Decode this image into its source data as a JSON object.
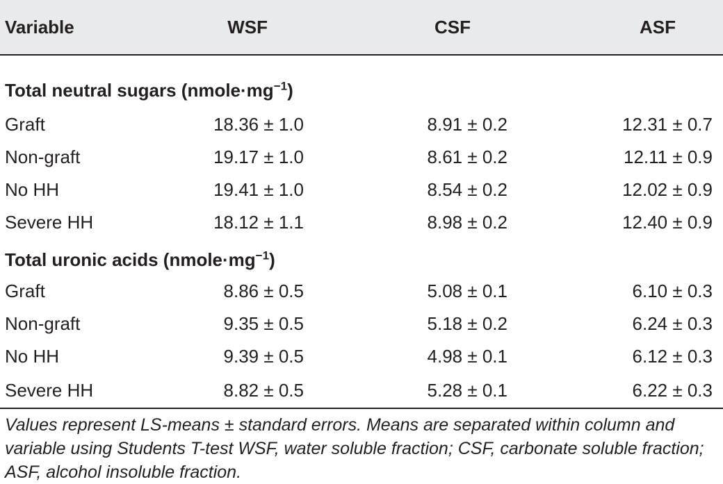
{
  "table": {
    "headers": [
      "Variable",
      "WSF",
      "CSF",
      "ASF"
    ],
    "groups": [
      {
        "title": "Total neutral sugars (nmole·mg",
        "title_sup": "−1",
        "title_end": ")",
        "rows": [
          {
            "label": "Graft",
            "wsf": "18.36 ± 1.0",
            "csf": "8.91 ± 0.2",
            "asf": "12.31 ± 0.7"
          },
          {
            "label": "Non-graft",
            "wsf": "19.17 ± 1.0",
            "csf": "8.61 ± 0.2",
            "asf": "12.11 ± 0.9"
          },
          {
            "label": "No HH",
            "wsf": "19.41 ± 1.0",
            "csf": "8.54 ± 0.2",
            "asf": "12.02 ± 0.9"
          },
          {
            "label": "Severe HH",
            "wsf": "18.12 ± 1.1",
            "csf": "8.98 ± 0.2",
            "asf": "12.40 ± 0.9"
          }
        ]
      },
      {
        "title": "Total uronic acids (nmole·mg",
        "title_sup": "−1",
        "title_end": ")",
        "rows": [
          {
            "label": "Graft",
            "wsf": "8.86 ± 0.5",
            "csf": "5.08 ± 0.1",
            "asf": "6.10 ± 0.3"
          },
          {
            "label": "Non-graft",
            "wsf": "9.35 ± 0.5",
            "csf": "5.18 ± 0.2",
            "asf": "6.24 ± 0.3"
          },
          {
            "label": "No HH",
            "wsf": "9.39 ± 0.5",
            "csf": "4.98 ± 0.1",
            "asf": "6.12 ± 0.3"
          },
          {
            "label": "Severe HH",
            "wsf": "8.82 ± 0.5",
            "csf": "5.28 ± 0.1",
            "asf": "6.22 ± 0.3"
          }
        ]
      }
    ],
    "footnote": "Values represent LS-means ± standard errors. Means are separated within column and variable using Students T-test WSF, water soluble fraction; CSF, carbonate soluble fraction; ASF, alcohol insoluble fraction."
  }
}
